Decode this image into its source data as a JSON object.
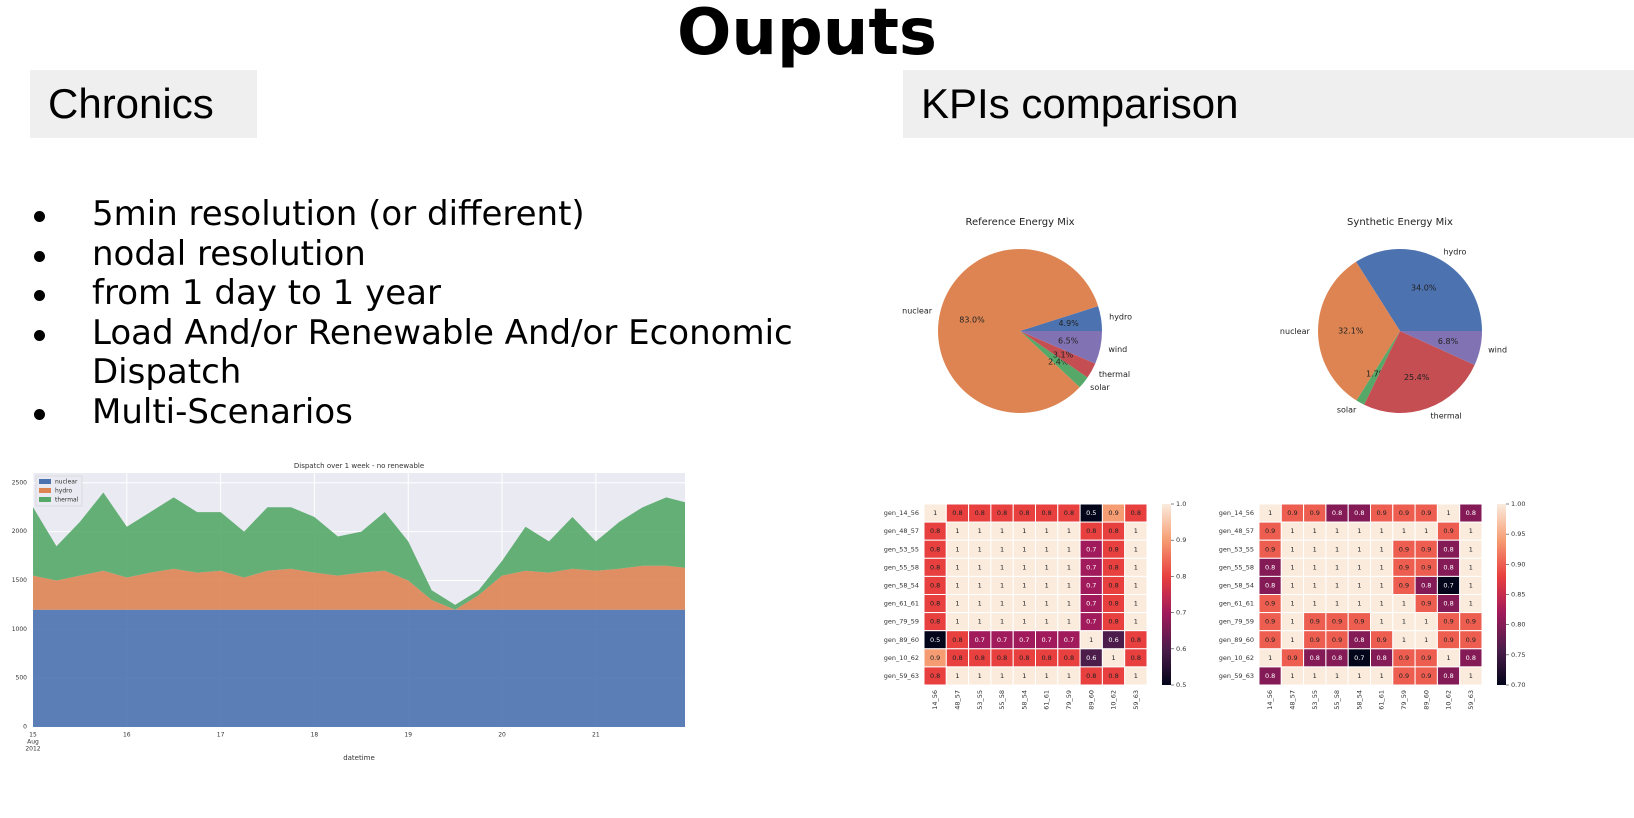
{
  "title": "Ouputs",
  "chronics": {
    "heading": "Chronics",
    "bullets": [
      "5min resolution (or different)",
      "nodal resolution",
      "from 1 day to 1 year",
      "Load And/or Renewable And/or Economic Dispatch",
      "Multi-Scenarios"
    ]
  },
  "kpis": {
    "heading": "KPIs comparison"
  },
  "chart_data": [
    {
      "type": "area",
      "title": "Dispatch over 1 week - no renewable",
      "xlabel": "datetime",
      "x": [
        15,
        15.25,
        15.5,
        15.75,
        16,
        16.25,
        16.5,
        16.75,
        17,
        17.25,
        17.5,
        17.75,
        18,
        18.25,
        18.5,
        18.75,
        19,
        19.25,
        19.5,
        19.75,
        20,
        20.25,
        20.5,
        20.75,
        21,
        21.25,
        21.5,
        21.75,
        21.95
      ],
      "series": [
        {
          "name": "nuclear",
          "color": "#4c72b0",
          "values": [
            1200,
            1200,
            1200,
            1200,
            1200,
            1200,
            1200,
            1200,
            1200,
            1200,
            1200,
            1200,
            1200,
            1200,
            1200,
            1200,
            1200,
            1200,
            1200,
            1200,
            1200,
            1200,
            1200,
            1200,
            1200,
            1200,
            1200,
            1200,
            1200
          ]
        },
        {
          "name": "hydro",
          "color": "#dd8452",
          "values": [
            350,
            300,
            350,
            400,
            330,
            380,
            420,
            380,
            400,
            330,
            400,
            420,
            380,
            350,
            380,
            400,
            300,
            100,
            0,
            150,
            350,
            400,
            380,
            420,
            400,
            420,
            450,
            450,
            430
          ]
        },
        {
          "name": "thermal",
          "color": "#55a868",
          "values": [
            700,
            350,
            550,
            800,
            520,
            620,
            730,
            620,
            600,
            470,
            650,
            630,
            570,
            400,
            420,
            600,
            400,
            100,
            50,
            50,
            150,
            450,
            320,
            530,
            300,
            480,
            600,
            700,
            670
          ]
        }
      ],
      "xlim": [
        15,
        21.95
      ],
      "xticks": [
        15,
        16,
        17,
        18,
        19,
        20,
        21
      ],
      "xtick_sublabels": [
        "Aug",
        "2012"
      ],
      "ylim": [
        0,
        2600
      ],
      "yticks": [
        0,
        500,
        1000,
        1500,
        2000,
        2500
      ],
      "grid": true,
      "legend": "upper-left"
    },
    {
      "type": "pie",
      "title": "Reference Energy Mix",
      "categories": [
        "hydro",
        "nuclear",
        "solar",
        "thermal",
        "wind"
      ],
      "values": [
        4.9,
        83,
        2.4,
        3.1,
        6.5
      ],
      "value_labels": [
        "4.9%",
        "83.0%",
        "2.4%",
        "3.1%",
        "6.5%"
      ],
      "colors": [
        "#4c72b0",
        "#dd8452",
        "#55a868",
        "#c44e52",
        "#8172b3"
      ]
    },
    {
      "type": "pie",
      "title": "Synthetic Energy Mix",
      "categories": [
        "hydro",
        "nuclear",
        "solar",
        "thermal",
        "wind"
      ],
      "values": [
        34,
        32.1,
        1.7,
        25.4,
        6.8
      ],
      "value_labels": [
        "34.0%",
        "32.1%",
        "1.7%",
        "25.4%",
        "6.8%"
      ],
      "colors": [
        "#4c72b0",
        "#dd8452",
        "#55a868",
        "#c44e52",
        "#8172b3"
      ]
    },
    {
      "type": "heatmap",
      "rows": [
        "gen_14_56",
        "gen_48_57",
        "gen_53_55",
        "gen_55_58",
        "gen_58_54",
        "gen_61_61",
        "gen_79_59",
        "gen_89_60",
        "gen_10_62",
        "gen_59_63"
      ],
      "columns": [
        "14_56",
        "48_57",
        "53_55",
        "55_58",
        "58_54",
        "61_61",
        "79_59",
        "89_60",
        "10_62",
        "59_63"
      ],
      "values": [
        [
          1,
          0.8,
          0.8,
          0.8,
          0.8,
          0.8,
          0.8,
          0.5,
          0.9,
          0.8
        ],
        [
          0.8,
          1,
          1,
          1,
          1,
          1,
          1,
          0.8,
          0.8,
          1
        ],
        [
          0.8,
          1,
          1,
          1,
          1,
          1,
          1,
          0.7,
          0.8,
          1
        ],
        [
          0.8,
          1,
          1,
          1,
          1,
          1,
          1,
          0.7,
          0.8,
          1
        ],
        [
          0.8,
          1,
          1,
          1,
          1,
          1,
          1,
          0.7,
          0.8,
          1
        ],
        [
          0.8,
          1,
          1,
          1,
          1,
          1,
          1,
          0.7,
          0.8,
          1
        ],
        [
          0.8,
          1,
          1,
          1,
          1,
          1,
          1,
          0.7,
          0.8,
          1
        ],
        [
          0.5,
          0.8,
          0.7,
          0.7,
          0.7,
          0.7,
          0.7,
          1,
          0.6,
          0.8
        ],
        [
          0.9,
          0.8,
          0.8,
          0.8,
          0.8,
          0.8,
          0.8,
          0.6,
          1,
          0.8
        ],
        [
          0.8,
          1,
          1,
          1,
          1,
          1,
          1,
          0.8,
          0.8,
          1
        ]
      ],
      "clim": [
        0.5,
        1
      ],
      "cticks": [
        {
          "value": 1,
          "label": "1.0"
        },
        0.9,
        0.8,
        0.7,
        0.6,
        0.5
      ]
    },
    {
      "type": "heatmap",
      "rows": [
        "gen_14_56",
        "gen_48_57",
        "gen_53_55",
        "gen_55_58",
        "gen_58_54",
        "gen_61_61",
        "gen_79_59",
        "gen_89_60",
        "gen_10_62",
        "gen_59_63"
      ],
      "columns": [
        "14_56",
        "48_57",
        "53_55",
        "55_58",
        "58_54",
        "61_61",
        "79_59",
        "89_60",
        "10_62",
        "59_63"
      ],
      "values": [
        [
          1,
          0.9,
          0.9,
          0.8,
          0.8,
          0.9,
          0.9,
          0.9,
          1,
          0.8
        ],
        [
          0.9,
          1,
          1,
          1,
          1,
          1,
          1,
          1,
          0.9,
          1
        ],
        [
          0.9,
          1,
          1,
          1,
          1,
          1,
          0.9,
          0.9,
          0.8,
          1
        ],
        [
          0.8,
          1,
          1,
          1,
          1,
          1,
          0.9,
          0.9,
          0.8,
          1
        ],
        [
          0.8,
          1,
          1,
          1,
          1,
          1,
          0.9,
          0.8,
          0.7,
          1
        ],
        [
          0.9,
          1,
          1,
          1,
          1,
          1,
          1,
          0.9,
          0.8,
          1
        ],
        [
          0.9,
          1,
          0.9,
          0.9,
          0.9,
          1,
          1,
          1,
          0.9,
          0.9
        ],
        [
          0.9,
          1,
          0.9,
          0.9,
          0.8,
          0.9,
          1,
          1,
          0.9,
          0.9
        ],
        [
          1,
          0.9,
          0.8,
          0.8,
          0.7,
          0.8,
          0.9,
          0.9,
          1,
          0.8
        ],
        [
          0.8,
          1,
          1,
          1,
          1,
          1,
          0.9,
          0.9,
          0.8,
          1
        ]
      ],
      "clim": [
        0.7,
        1
      ],
      "cticks": [
        {
          "value": 1,
          "label": "1.00"
        },
        {
          "value": 0.95,
          "label": "0.95"
        },
        {
          "value": 0.9,
          "label": "0.90"
        },
        {
          "value": 0.85,
          "label": "0.85"
        },
        {
          "value": 0.8,
          "label": "0.80"
        },
        {
          "value": 0.75,
          "label": "0.75"
        },
        {
          "value": 0.7,
          "label": "0.70"
        }
      ]
    }
  ]
}
